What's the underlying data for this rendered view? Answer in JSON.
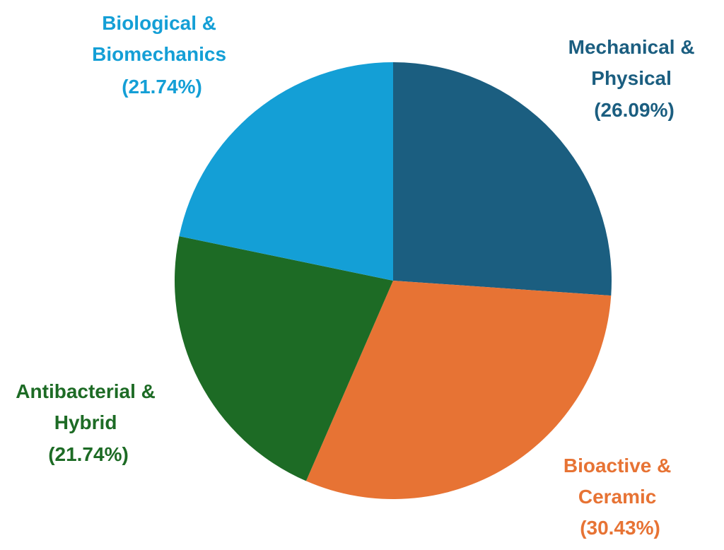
{
  "chart_data": {
    "type": "pie",
    "title": "",
    "slices": [
      {
        "name": "Mechanical & Physical",
        "lines": [
          "Mechanical &",
          "Physical"
        ],
        "percent_label": "(26.09%)",
        "value": 26.09,
        "color": "#1b5e80"
      },
      {
        "name": "Bioactive & Ceramic",
        "lines": [
          "Bioactive &",
          "Ceramic"
        ],
        "percent_label": "(30.43%)",
        "value": 30.43,
        "color": "#e77334"
      },
      {
        "name": "Antibacterial & Hybrid",
        "lines": [
          "Antibacterial &",
          "Hybrid"
        ],
        "percent_label": "(21.74%)",
        "value": 21.74,
        "color": "#1d6b25"
      },
      {
        "name": "Biological & Biomechanics",
        "lines": [
          "Biological &",
          "Biomechanics"
        ],
        "percent_label": "(21.74%)",
        "value": 21.74,
        "color": "#149fd6"
      }
    ]
  }
}
